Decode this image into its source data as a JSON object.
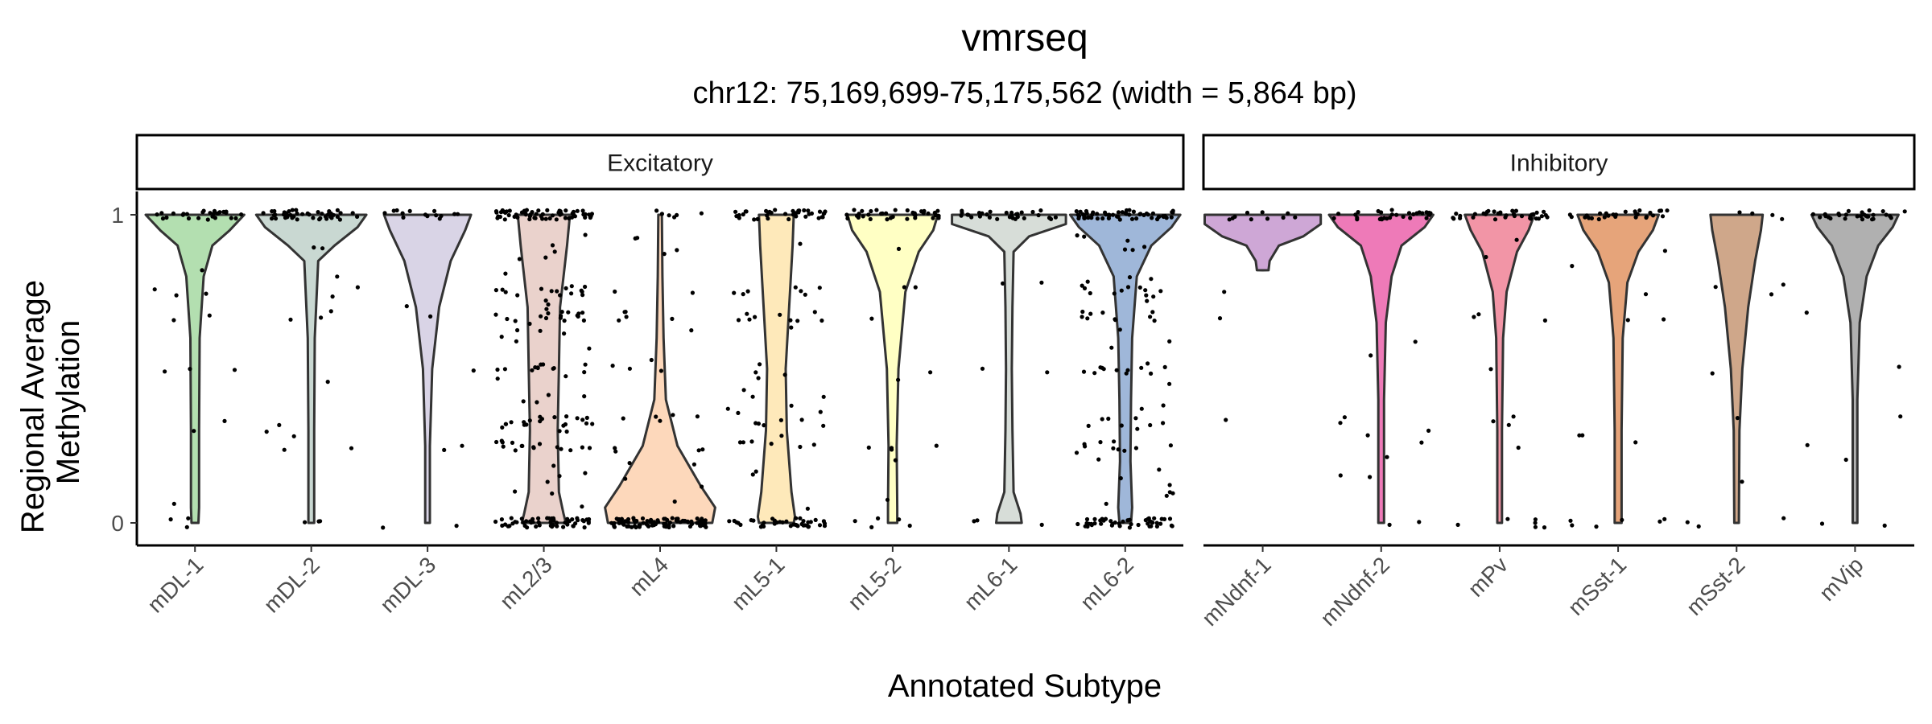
{
  "chart_data": {
    "type": "violin",
    "title": "vmrseq",
    "subtitle": "chr12: 75,169,699-75,175,562 (width = 5,864 bp)",
    "xlabel": "Annotated Subtype",
    "ylabel_lines": [
      "Regional Average",
      "Methylation"
    ],
    "ylim": [
      0,
      1
    ],
    "yticks": [
      0,
      1
    ],
    "panels": [
      {
        "name": "Excitatory",
        "categories": [
          {
            "name": "mDL-1",
            "color": "#b3dfb0",
            "jitter": {
              "one": 28,
              "zero": 3,
              "mid": 12
            },
            "violin": [
              [
                1.0,
                0.85
              ],
              [
                0.95,
                0.6
              ],
              [
                0.9,
                0.3
              ],
              [
                0.8,
                0.15
              ],
              [
                0.6,
                0.08
              ],
              [
                0.3,
                0.07
              ],
              [
                0.05,
                0.07
              ],
              [
                0.0,
                0.06
              ]
            ]
          },
          {
            "name": "mDL-2",
            "color": "#c9d8d2",
            "jitter": {
              "one": 45,
              "zero": 3,
              "mid": 14
            },
            "violin": [
              [
                1.0,
                0.95
              ],
              [
                0.96,
                0.8
              ],
              [
                0.9,
                0.4
              ],
              [
                0.85,
                0.12
              ],
              [
                0.6,
                0.06
              ],
              [
                0.3,
                0.05
              ],
              [
                0.0,
                0.05
              ]
            ]
          },
          {
            "name": "mDL-3",
            "color": "#d9d4e6",
            "jitter": {
              "one": 14,
              "zero": 2,
              "mid": 5
            },
            "violin": [
              [
                1.0,
                0.75
              ],
              [
                0.95,
                0.65
              ],
              [
                0.85,
                0.4
              ],
              [
                0.7,
                0.2
              ],
              [
                0.5,
                0.08
              ],
              [
                0.25,
                0.04
              ],
              [
                0.0,
                0.04
              ]
            ]
          },
          {
            "name": "mL2/3",
            "color": "#ead2cc",
            "jitter": {
              "one": 60,
              "zero": 55,
              "mid": 110
            },
            "violin": [
              [
                1.0,
                0.45
              ],
              [
                0.9,
                0.4
              ],
              [
                0.7,
                0.28
              ],
              [
                0.5,
                0.26
              ],
              [
                0.3,
                0.24
              ],
              [
                0.1,
                0.26
              ],
              [
                0.03,
                0.34
              ],
              [
                0.0,
                0.38
              ]
            ]
          },
          {
            "name": "mL4",
            "color": "#fdd8bb",
            "jitter": {
              "one": 6,
              "zero": 90,
              "mid": 30
            },
            "violin": [
              [
                1.0,
                0.03
              ],
              [
                0.8,
                0.04
              ],
              [
                0.6,
                0.06
              ],
              [
                0.4,
                0.1
              ],
              [
                0.25,
                0.3
              ],
              [
                0.12,
                0.7
              ],
              [
                0.05,
                0.95
              ],
              [
                0.0,
                0.9
              ]
            ]
          },
          {
            "name": "mL5-1",
            "color": "#fee9ba",
            "jitter": {
              "one": 40,
              "zero": 40,
              "mid": 45
            },
            "violin": [
              [
                1.0,
                0.3
              ],
              [
                0.9,
                0.28
              ],
              [
                0.7,
                0.22
              ],
              [
                0.5,
                0.16
              ],
              [
                0.3,
                0.18
              ],
              [
                0.1,
                0.26
              ],
              [
                0.02,
                0.32
              ],
              [
                0.0,
                0.3
              ]
            ]
          },
          {
            "name": "mL5-2",
            "color": "#ffffc4",
            "jitter": {
              "one": 38,
              "zero": 5,
              "mid": 12
            },
            "violin": [
              [
                1.0,
                0.78
              ],
              [
                0.95,
                0.7
              ],
              [
                0.88,
                0.45
              ],
              [
                0.75,
                0.22
              ],
              [
                0.5,
                0.1
              ],
              [
                0.25,
                0.07
              ],
              [
                0.05,
                0.08
              ],
              [
                0.0,
                0.08
              ]
            ]
          },
          {
            "name": "mL6-1",
            "color": "#d7ddd8",
            "jitter": {
              "one": 32,
              "zero": 3,
              "mid": 4
            },
            "violin": [
              [
                1.0,
                1.3
              ],
              [
                0.97,
                1.0
              ],
              [
                0.93,
                0.35
              ],
              [
                0.88,
                0.08
              ],
              [
                0.7,
                0.06
              ],
              [
                0.5,
                0.05
              ],
              [
                0.3,
                0.06
              ],
              [
                0.1,
                0.08
              ],
              [
                0.03,
                0.2
              ],
              [
                0.0,
                0.22
              ]
            ]
          },
          {
            "name": "mL6-2",
            "color": "#9fb7d9",
            "jitter": {
              "one": 60,
              "zero": 45,
              "mid": 75
            },
            "violin": [
              [
                1.0,
                0.95
              ],
              [
                0.96,
                0.8
              ],
              [
                0.9,
                0.45
              ],
              [
                0.8,
                0.2
              ],
              [
                0.6,
                0.12
              ],
              [
                0.4,
                0.1
              ],
              [
                0.2,
                0.09
              ],
              [
                0.05,
                0.12
              ],
              [
                0.0,
                0.1
              ]
            ]
          }
        ]
      },
      {
        "name": "Inhibitory",
        "categories": [
          {
            "name": "mNdnf-1",
            "color": "#cea7d6",
            "jitter": {
              "one": 10,
              "zero": 0,
              "mid": 3
            },
            "violin": [
              [
                1.0,
                1.7
              ],
              [
                0.97,
                1.4
              ],
              [
                0.93,
                0.7
              ],
              [
                0.9,
                0.28
              ],
              [
                0.85,
                0.12
              ],
              [
                0.82,
                0.1
              ]
            ]
          },
          {
            "name": "mNdnf-2",
            "color": "#ee7ab8",
            "jitter": {
              "one": 30,
              "zero": 2,
              "mid": 10
            },
            "violin": [
              [
                1.0,
                0.9
              ],
              [
                0.96,
                0.75
              ],
              [
                0.9,
                0.35
              ],
              [
                0.8,
                0.18
              ],
              [
                0.65,
                0.08
              ],
              [
                0.4,
                0.05
              ],
              [
                0.0,
                0.05
              ]
            ]
          },
          {
            "name": "mPv",
            "color": "#f295a6",
            "jitter": {
              "one": 35,
              "zero": 6,
              "mid": 10
            },
            "violin": [
              [
                1.0,
                0.6
              ],
              [
                0.95,
                0.5
              ],
              [
                0.88,
                0.3
              ],
              [
                0.75,
                0.12
              ],
              [
                0.6,
                0.06
              ],
              [
                0.3,
                0.04
              ],
              [
                0.0,
                0.04
              ]
            ]
          },
          {
            "name": "mSst-1",
            "color": "#e6a47a",
            "jitter": {
              "one": 28,
              "zero": 6,
              "mid": 8
            },
            "violin": [
              [
                1.0,
                0.7
              ],
              [
                0.95,
                0.6
              ],
              [
                0.88,
                0.35
              ],
              [
                0.78,
                0.16
              ],
              [
                0.6,
                0.08
              ],
              [
                0.3,
                0.06
              ],
              [
                0.05,
                0.06
              ],
              [
                0.0,
                0.06
              ]
            ]
          },
          {
            "name": "mSst-2",
            "color": "#cfa78a",
            "jitter": {
              "one": 4,
              "zero": 3,
              "mid": 6
            },
            "violin": [
              [
                1.0,
                0.45
              ],
              [
                0.95,
                0.42
              ],
              [
                0.85,
                0.32
              ],
              [
                0.7,
                0.2
              ],
              [
                0.5,
                0.1
              ],
              [
                0.3,
                0.05
              ],
              [
                0.0,
                0.04
              ]
            ]
          },
          {
            "name": "mVip",
            "color": "#b0b0b0",
            "jitter": {
              "one": 28,
              "zero": 2,
              "mid": 5
            },
            "violin": [
              [
                1.0,
                0.75
              ],
              [
                0.96,
                0.65
              ],
              [
                0.9,
                0.4
              ],
              [
                0.8,
                0.2
              ],
              [
                0.65,
                0.08
              ],
              [
                0.4,
                0.04
              ],
              [
                0.0,
                0.04
              ]
            ]
          }
        ]
      }
    ]
  }
}
